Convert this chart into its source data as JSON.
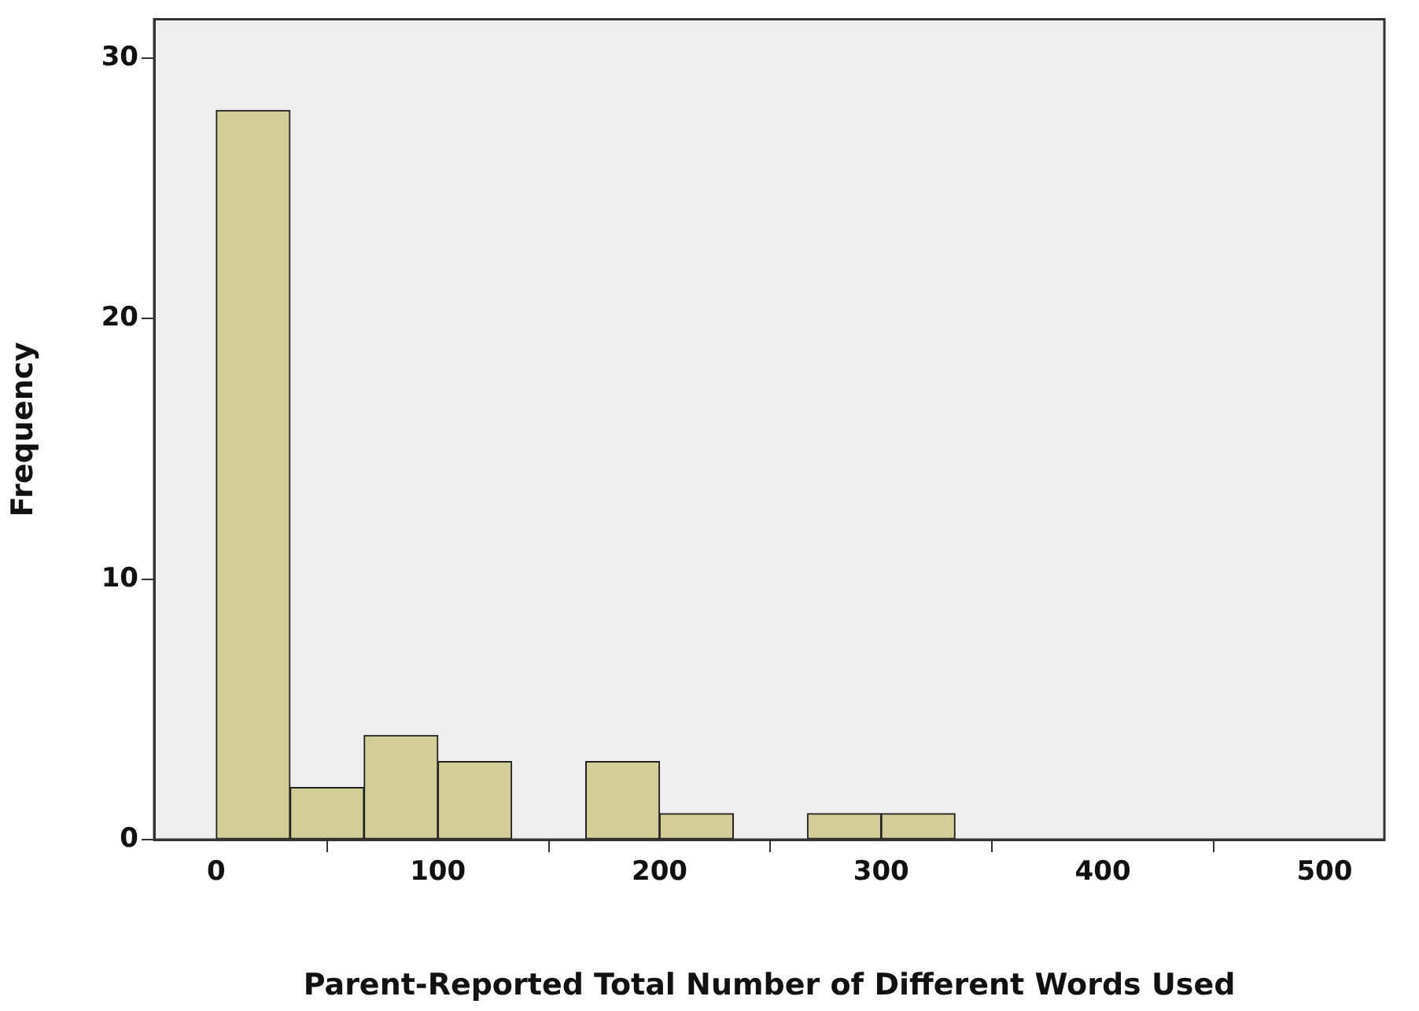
{
  "chart_data": {
    "type": "histogram",
    "xlabel": "Parent-Reported Total Number of Different Words Used",
    "ylabel": "Frequency",
    "bins": [
      0,
      33.3,
      66.7,
      100,
      133.3,
      166.7,
      200,
      233.3,
      266.7,
      300,
      333.3
    ],
    "values": [
      28,
      2,
      4,
      3,
      0,
      3,
      1,
      0,
      1,
      1
    ],
    "color": "#d3ce98",
    "xlim": [
      -28,
      527
    ],
    "xticks": [
      0,
      100,
      200,
      300,
      400,
      500
    ],
    "ylim": [
      0,
      31.5
    ],
    "yticks": [
      0,
      10,
      20,
      30
    ],
    "grid": false,
    "legend": false
  }
}
